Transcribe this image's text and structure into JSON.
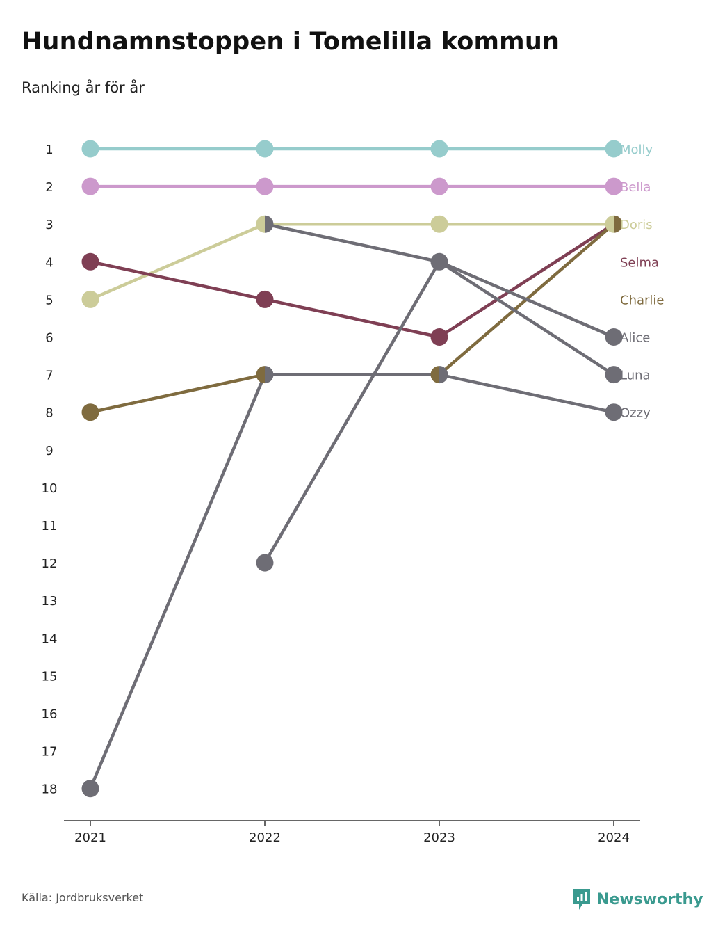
{
  "chart_data": {
    "type": "line",
    "title": "Hundnamnstoppen i Tomelilla kommun",
    "subtitle": "Ranking år för år",
    "x": [
      "2021",
      "2022",
      "2023",
      "2024"
    ],
    "ylim": [
      1,
      18
    ],
    "y_reversed": true,
    "y_ticks": [
      1,
      2,
      3,
      4,
      5,
      6,
      7,
      8,
      9,
      10,
      11,
      12,
      13,
      14,
      15,
      16,
      17,
      18
    ],
    "grid": false,
    "series": [
      {
        "name": "Molly",
        "color": "#96cccc",
        "values": [
          1,
          1,
          1,
          1
        ]
      },
      {
        "name": "Bella",
        "color": "#cc99cc",
        "values": [
          2,
          2,
          2,
          2
        ]
      },
      {
        "name": "Doris",
        "color": "#cccc99",
        "values": [
          5,
          3,
          3,
          3
        ]
      },
      {
        "name": "Selma",
        "color": "#7f3f54",
        "values": [
          4,
          5,
          6,
          3
        ]
      },
      {
        "name": "Charlie",
        "color": "#7f6b3f",
        "values": [
          8,
          7,
          7,
          3
        ]
      },
      {
        "name": "Alice",
        "color": "#6e6d75",
        "values": [
          null,
          3,
          4,
          6
        ]
      },
      {
        "name": "Luna",
        "color": "#6e6d75",
        "values": [
          null,
          12,
          4,
          7
        ]
      },
      {
        "name": "Ozzy",
        "color": "#6e6d75",
        "values": [
          18,
          7,
          7,
          8
        ]
      }
    ]
  },
  "footer": {
    "source": "Källa: Jordbruksverket",
    "brand": "Newsworthy",
    "brand_icon": "newsworthy-logo-icon",
    "brand_color": "#3a9a8f"
  }
}
